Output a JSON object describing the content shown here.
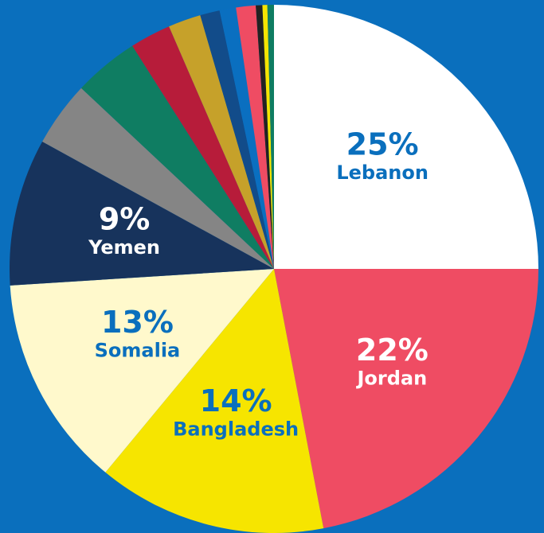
{
  "chart_data": {
    "type": "pie",
    "categories": [
      "Lebanon",
      "Jordan",
      "Bangladesh",
      "Somalia",
      "Yemen",
      null,
      null,
      null,
      null,
      null,
      null,
      null,
      null,
      null,
      null
    ],
    "values": [
      25,
      22,
      14,
      13,
      9,
      4,
      4,
      2.5,
      2,
      1.2,
      1,
      1.2,
      0.4,
      0.3,
      0.4
    ],
    "value_labels": [
      "25%",
      "22%",
      "14%",
      "13%",
      "9%",
      null,
      null,
      null,
      null,
      null,
      null,
      null,
      null,
      null,
      null
    ],
    "colors": [
      "#ffffff",
      "#ef4c63",
      "#f6e500",
      "#fff9cc",
      "#17335c",
      "#858585",
      "#0f7d62",
      "#b71c3a",
      "#c6a12a",
      "#124c8a",
      "#0a6fc0",
      "#ef4c63",
      "#222222",
      "#f6e500",
      "#0f7d62"
    ],
    "label_colors": [
      "#0a6fbd",
      "#ffffff",
      "#0a6fbd",
      "#0a6fbd",
      "#ffffff"
    ]
  }
}
